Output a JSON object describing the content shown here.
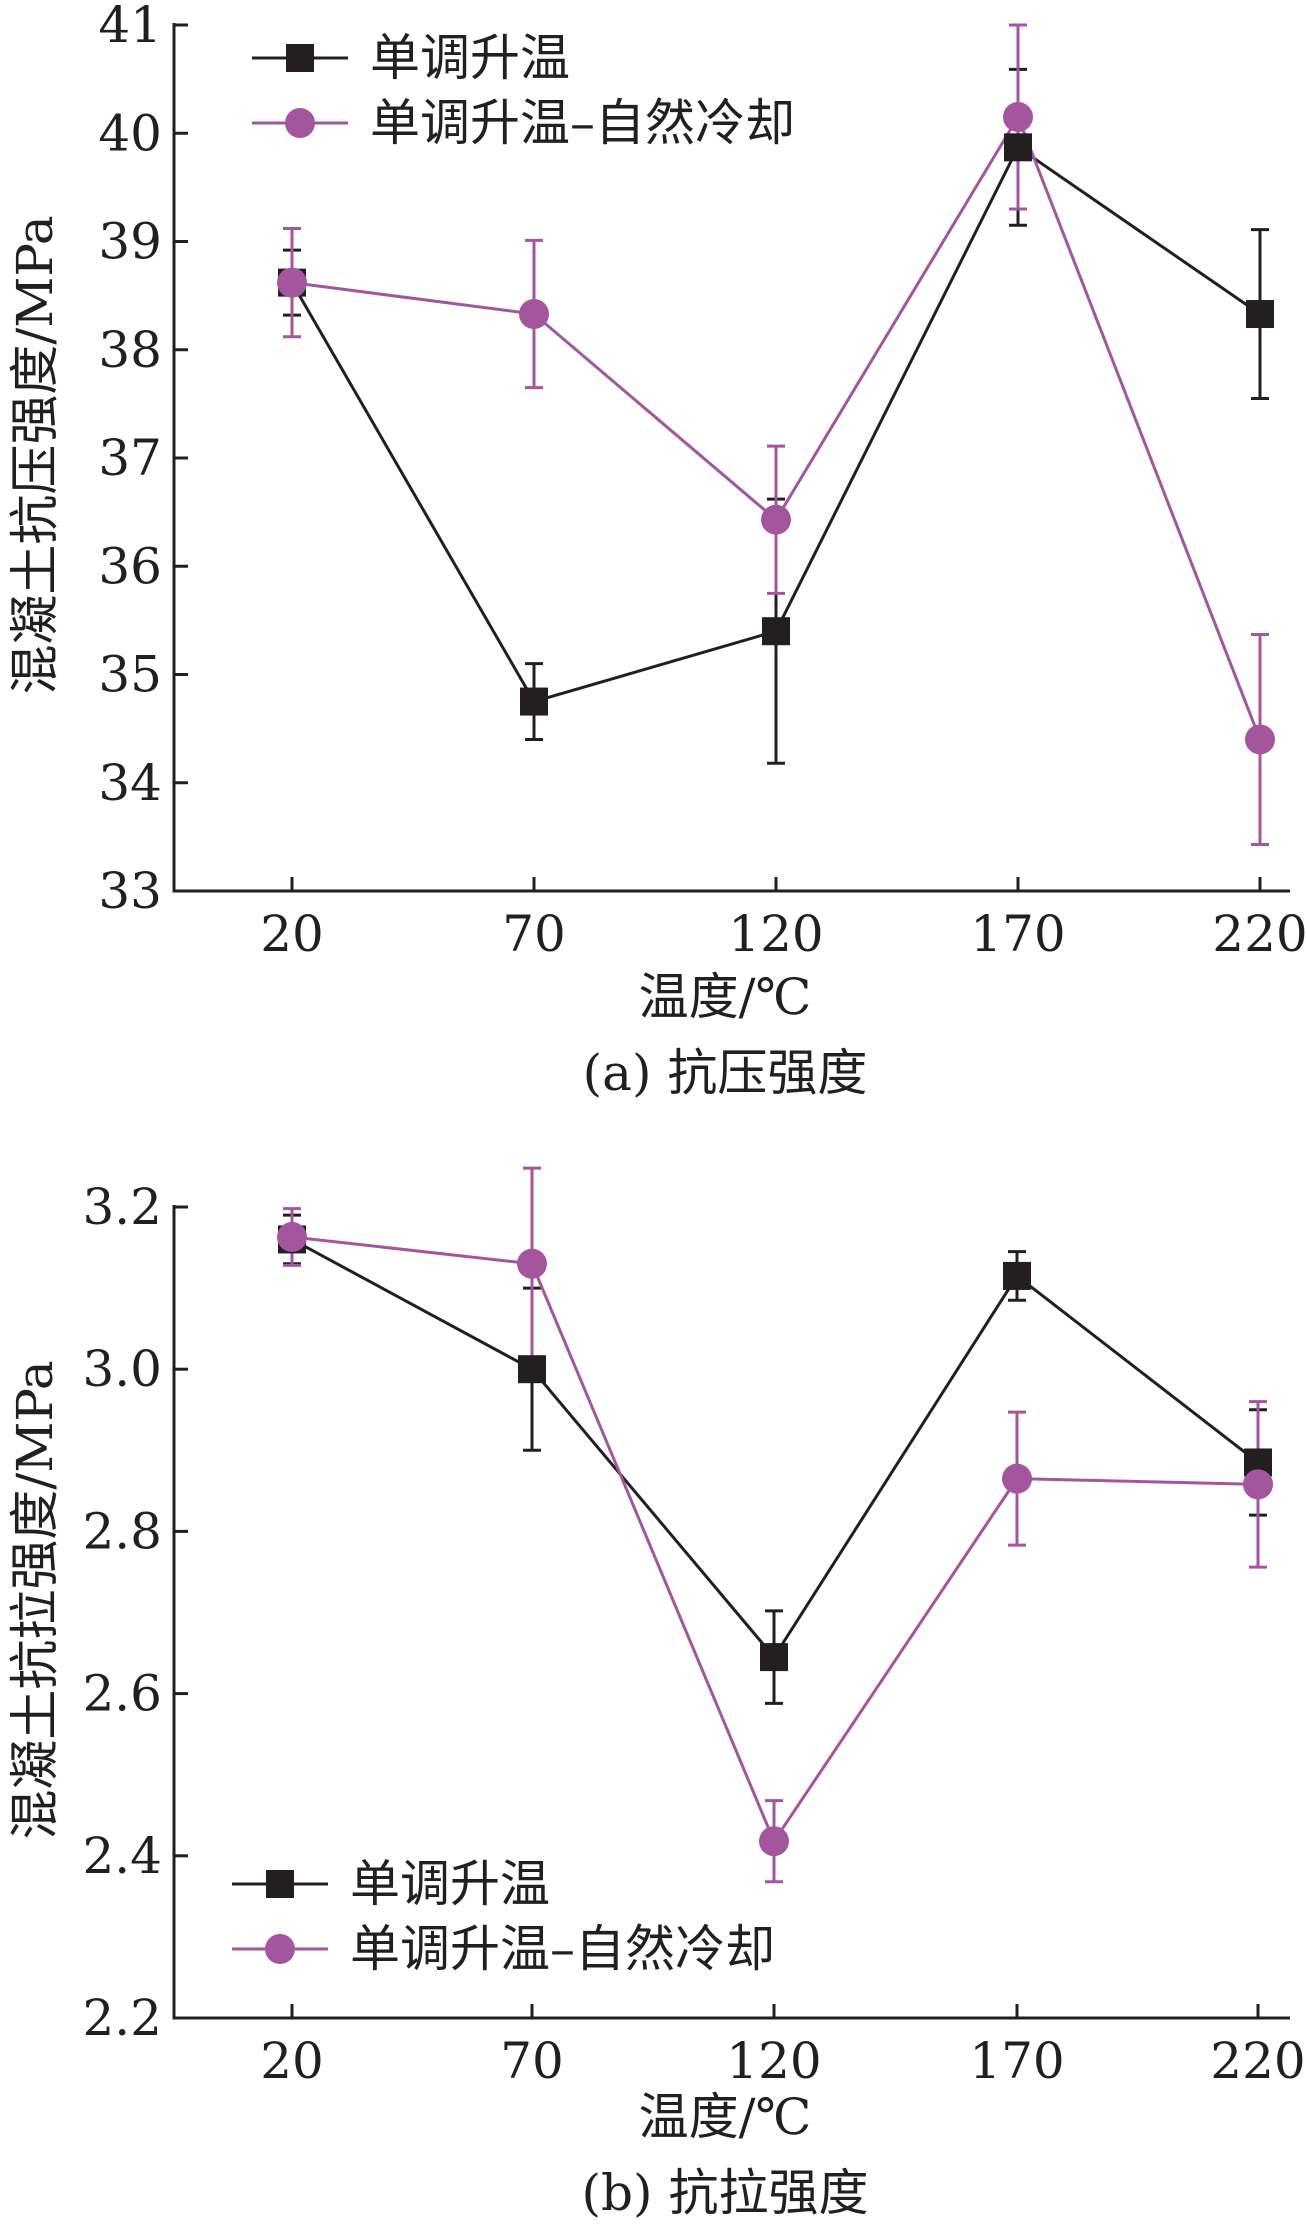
{
  "colors": {
    "series1": "#231f20",
    "series2": "#a3559e",
    "axis": "#231f20"
  },
  "chart_data": [
    {
      "type": "line",
      "caption": "(a) 抗压强度",
      "xlabel": "温度/℃",
      "ylabel": "混凝土抗压强度/MPa",
      "x": [
        20,
        70,
        120,
        170,
        220
      ],
      "ylim": [
        33,
        41
      ],
      "yticks": [
        "33",
        "34",
        "35",
        "36",
        "37",
        "38",
        "39",
        "40",
        "41"
      ],
      "legend_position": "top-left",
      "series": [
        {
          "name": "单调升温",
          "marker": "square",
          "values": [
            38.62,
            34.75,
            35.4,
            39.87,
            38.33
          ],
          "errors": [
            0.3,
            0.35,
            1.22,
            0.72,
            0.78
          ]
        },
        {
          "name": "单调升温–自然冷却",
          "marker": "circle",
          "values": [
            38.62,
            38.33,
            36.43,
            40.15,
            34.4
          ],
          "errors": [
            0.5,
            0.68,
            0.68,
            0.85,
            0.97
          ]
        }
      ]
    },
    {
      "type": "line",
      "caption": "(b) 抗拉强度",
      "xlabel": "温度/℃",
      "ylabel": "混凝土抗拉强度/MPa",
      "x": [
        20,
        70,
        120,
        170,
        220
      ],
      "ylim": [
        2.2,
        3.2
      ],
      "yticks": [
        "2.2",
        "2.4",
        "2.6",
        "2.8",
        "3.0",
        "3.2"
      ],
      "legend_position": "bottom-left",
      "series": [
        {
          "name": "单调升温",
          "marker": "square",
          "values": [
            3.16,
            3.0,
            2.645,
            3.115,
            2.885
          ],
          "errors": [
            0.03,
            0.1,
            0.057,
            0.03,
            0.065
          ]
        },
        {
          "name": "单调升温–自然冷却",
          "marker": "circle",
          "values": [
            3.163,
            3.13,
            2.418,
            2.865,
            2.858
          ],
          "errors": [
            0.035,
            0.118,
            0.05,
            0.082,
            0.102
          ]
        }
      ]
    }
  ]
}
